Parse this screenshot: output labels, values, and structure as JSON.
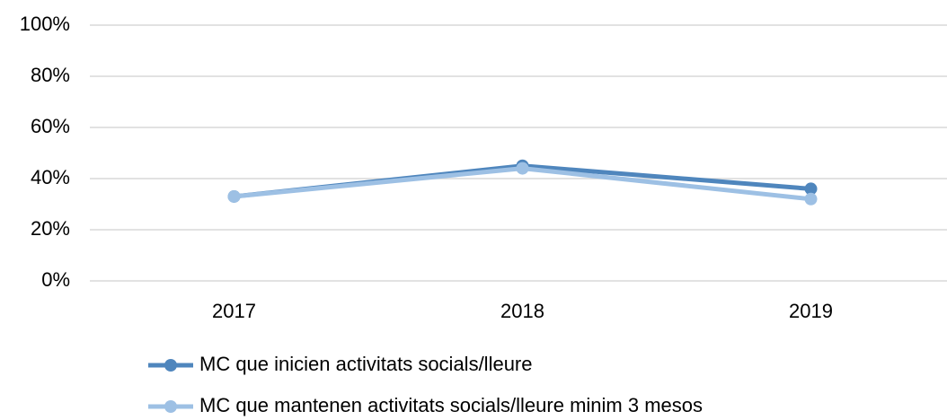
{
  "chart_data": {
    "type": "line",
    "categories": [
      "2017",
      "2018",
      "2019"
    ],
    "series": [
      {
        "name": "MC que inicien activitats socials/lleure",
        "color": "#4f86bd",
        "values": [
          33,
          45,
          36
        ]
      },
      {
        "name": "MC que mantenen activitats socials/lleure minim 3 mesos",
        "color": "#9dc0e4",
        "values": [
          33,
          44,
          32
        ]
      }
    ],
    "ylim": [
      0,
      100
    ],
    "yticks": [
      {
        "value": 0,
        "label": "0%"
      },
      {
        "value": 20,
        "label": "20%"
      },
      {
        "value": 40,
        "label": "40%"
      },
      {
        "value": 60,
        "label": "60%"
      },
      {
        "value": 80,
        "label": "80%"
      },
      {
        "value": 100,
        "label": "100%"
      }
    ],
    "grid": true,
    "legend": "bottom"
  }
}
